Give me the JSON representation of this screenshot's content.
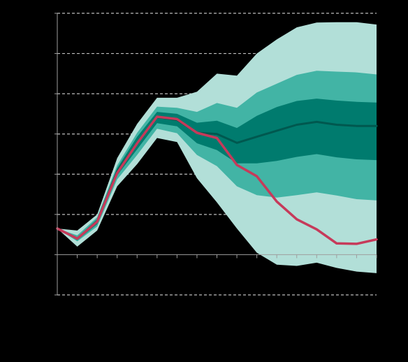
{
  "chart_data": {
    "type": "area",
    "title": "",
    "xlabel": "",
    "ylabel": "",
    "x": [
      0,
      1,
      2,
      3,
      4,
      5,
      6,
      7,
      8,
      9,
      10,
      11,
      12,
      13,
      14,
      15,
      16
    ],
    "xlim": [
      0,
      16
    ],
    "ylim": [
      -1,
      6
    ],
    "yticks": [
      -1,
      0,
      1,
      2,
      3,
      4,
      5,
      6
    ],
    "grid": true,
    "legend": "none",
    "bands": [
      {
        "level": "outer",
        "color": "#b2dfd8",
        "upper": [
          0.65,
          0.6,
          1.0,
          2.4,
          3.25,
          3.9,
          3.9,
          4.05,
          4.5,
          4.45,
          5.0,
          5.35,
          5.65,
          5.77,
          5.78,
          5.78,
          5.72
        ],
        "lower": [
          0.65,
          0.2,
          0.6,
          1.7,
          2.25,
          2.9,
          2.8,
          1.9,
          1.3,
          0.65,
          0.05,
          -0.25,
          -0.28,
          -0.2,
          -0.33,
          -0.42,
          -0.46
        ]
      },
      {
        "level": "middle",
        "color": "#42b4a5",
        "upper": [
          0.65,
          0.48,
          0.93,
          2.22,
          3.03,
          3.68,
          3.65,
          3.55,
          3.77,
          3.65,
          4.03,
          4.25,
          4.47,
          4.57,
          4.55,
          4.53,
          4.48
        ],
        "lower": [
          0.65,
          0.33,
          0.7,
          1.87,
          2.48,
          3.13,
          3.02,
          2.48,
          2.2,
          1.7,
          1.48,
          1.42,
          1.48,
          1.55,
          1.47,
          1.38,
          1.35
        ]
      },
      {
        "level": "inner",
        "color": "#007b6e",
        "upper": [
          0.65,
          0.43,
          0.88,
          2.15,
          2.93,
          3.55,
          3.5,
          3.28,
          3.33,
          3.15,
          3.45,
          3.67,
          3.82,
          3.88,
          3.83,
          3.8,
          3.78
        ],
        "lower": [
          0.65,
          0.36,
          0.76,
          1.97,
          2.62,
          3.27,
          3.19,
          2.77,
          2.6,
          2.27,
          2.27,
          2.33,
          2.43,
          2.5,
          2.42,
          2.37,
          2.35
        ]
      }
    ],
    "series": [
      {
        "kind": "central-projection",
        "color": "#00584f",
        "values": [
          0.65,
          0.4,
          0.83,
          2.07,
          2.78,
          3.42,
          3.35,
          3.03,
          3.0,
          2.78,
          2.93,
          3.08,
          3.23,
          3.3,
          3.23,
          3.2,
          3.2
        ]
      },
      {
        "kind": "actual",
        "color": "#c63a5a",
        "values": [
          0.65,
          0.4,
          0.82,
          2.03,
          2.77,
          3.43,
          3.37,
          3.03,
          2.9,
          2.23,
          1.95,
          1.32,
          0.88,
          0.63,
          0.28,
          0.27,
          0.38
        ]
      }
    ]
  }
}
